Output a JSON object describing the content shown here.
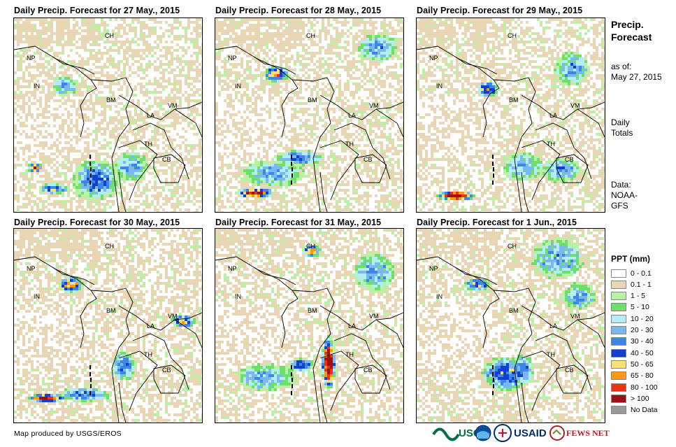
{
  "panels": [
    {
      "title": "Daily Precip. Forecast for 27 May., 2015"
    },
    {
      "title": "Daily Precip. Forecast for 28 May., 2015"
    },
    {
      "title": "Daily Precip. Forecast for 29 May., 2015"
    },
    {
      "title": "Daily Precip. Forecast for 30 May., 2015"
    },
    {
      "title": "Daily Precip. Forecast for 31 May., 2015"
    },
    {
      "title": "Daily Precip. Forecast for 1 Jun., 2015"
    }
  ],
  "country_labels": [
    "CH",
    "NP",
    "IN",
    "BM",
    "LA",
    "VM",
    "TH",
    "CB"
  ],
  "sidebar": {
    "title_line1": "Precip.",
    "title_line2": "Forecast",
    "asof_label": "as of:",
    "asof_date": "May 27, 2015",
    "totals_line1": "Daily",
    "totals_line2": "Totals",
    "data_label": "Data:",
    "data_line1": "NOAA-",
    "data_line2": "GFS"
  },
  "legend": {
    "title": "PPT (mm)",
    "items": [
      {
        "label": "0 - 0.1",
        "color": "#ffffff"
      },
      {
        "label": "0.1 - 1",
        "color": "#e8d6b4"
      },
      {
        "label": "1 - 5",
        "color": "#b8f3a4"
      },
      {
        "label": "5 - 10",
        "color": "#6ce06a"
      },
      {
        "label": "10 - 20",
        "color": "#b4ecf8"
      },
      {
        "label": "20 - 30",
        "color": "#7ab8f0"
      },
      {
        "label": "30 - 40",
        "color": "#3c86e6"
      },
      {
        "label": "40 - 50",
        "color": "#1040d0"
      },
      {
        "label": "50 - 65",
        "color": "#f8e078"
      },
      {
        "label": "65 - 80",
        "color": "#f89a10"
      },
      {
        "label": "80 - 100",
        "color": "#f03010"
      },
      {
        "label": "> 100",
        "color": "#a01010"
      },
      {
        "label": "No Data",
        "color": "#999999"
      }
    ]
  },
  "footer": {
    "credit": "Map produced by USGS/EROS"
  },
  "logos": {
    "usgs": "USGS",
    "usaid": "USAID",
    "fewsnet": "FEWS NET"
  }
}
